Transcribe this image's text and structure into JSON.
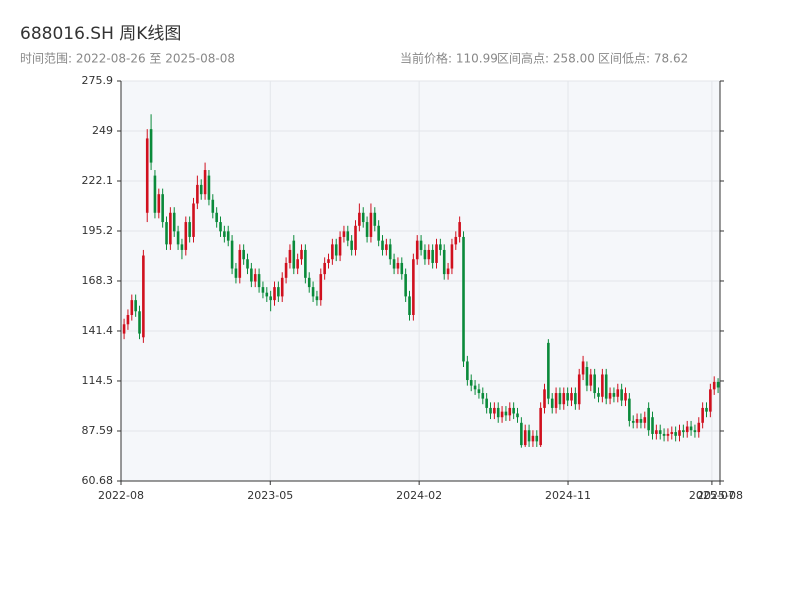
{
  "chart_data": {
    "type": "candlestick",
    "title": "688016.SH 周K线图",
    "subtitle": "时间范围: 2022-08-26 至 2025-08-08",
    "stats": [
      "当前价格: 110.99",
      "区间高点: 258.00",
      "区间低点: 78.62"
    ],
    "up_color": "#d0101e",
    "down_color": "#0a8a3a",
    "grid": true,
    "ylim": [
      60.68,
      275.9
    ],
    "yticks": [
      60.68,
      87.59,
      114.5,
      141.4,
      168.3,
      195.2,
      222.1,
      249.0,
      275.9
    ],
    "xlim": [
      -0.8,
      154.5
    ],
    "xticks": [
      {
        "value": -0.8,
        "label": "2022-08"
      },
      {
        "value": 37.9,
        "label": "2023-05"
      },
      {
        "value": 76.5,
        "label": "2024-02"
      },
      {
        "value": 115.1,
        "label": "2024-11"
      },
      {
        "value": 152.4,
        "label": "2025-07"
      },
      {
        "value": 154.5,
        "label": "2025-08"
      }
    ],
    "open": [
      140,
      145,
      150,
      158,
      152,
      138,
      205,
      250,
      225,
      205,
      215,
      200,
      188,
      205,
      195,
      188,
      185,
      200,
      192,
      210,
      220,
      215,
      225,
      212,
      205,
      200,
      195,
      195,
      190,
      175,
      170,
      185,
      180,
      175,
      168,
      172,
      165,
      162,
      160,
      158,
      165,
      160,
      170,
      178,
      190,
      175,
      180,
      185,
      170,
      165,
      160,
      158,
      172,
      178,
      180,
      188,
      182,
      192,
      195,
      190,
      185,
      198,
      205,
      200,
      192,
      205,
      198,
      190,
      185,
      188,
      180,
      175,
      178,
      172,
      160,
      150,
      180,
      190,
      185,
      180,
      185,
      178,
      188,
      185,
      172,
      175,
      188,
      192,
      192,
      125,
      115,
      112,
      110,
      108,
      105,
      100,
      97,
      100,
      95,
      98,
      96,
      100,
      97,
      92,
      80,
      88,
      82,
      85,
      80,
      100,
      135,
      105,
      100,
      108,
      102,
      108,
      104,
      108,
      102,
      118,
      122,
      112,
      118,
      108,
      106,
      118,
      105,
      108,
      106,
      110,
      104,
      105,
      93,
      92,
      94,
      92,
      100,
      95,
      86,
      88,
      86,
      85,
      86,
      87,
      85,
      88,
      87,
      90,
      88,
      87,
      92,
      100,
      98,
      110,
      114
    ],
    "high": [
      148,
      153,
      161,
      161,
      155,
      185,
      250,
      258,
      228,
      218,
      218,
      203,
      208,
      208,
      198,
      191,
      203,
      203,
      213,
      225,
      223,
      232,
      228,
      215,
      208,
      203,
      198,
      198,
      193,
      178,
      188,
      188,
      183,
      178,
      175,
      175,
      168,
      165,
      163,
      168,
      168,
      173,
      181,
      188,
      193,
      183,
      188,
      188,
      173,
      168,
      163,
      175,
      181,
      183,
      191,
      191,
      195,
      198,
      198,
      193,
      201,
      210,
      208,
      203,
      210,
      208,
      201,
      193,
      191,
      191,
      183,
      181,
      181,
      175,
      163,
      183,
      193,
      193,
      188,
      188,
      188,
      191,
      191,
      188,
      178,
      191,
      195,
      203,
      195,
      128,
      118,
      115,
      113,
      111,
      108,
      103,
      103,
      103,
      101,
      101,
      103,
      103,
      100,
      95,
      91,
      91,
      88,
      88,
      103,
      113,
      137,
      108,
      111,
      111,
      111,
      111,
      111,
      111,
      121,
      128,
      125,
      121,
      121,
      111,
      121,
      121,
      111,
      111,
      113,
      113,
      111,
      108,
      96,
      97,
      97,
      98,
      103,
      98,
      91,
      91,
      89,
      89,
      90,
      90,
      91,
      91,
      93,
      93,
      91,
      95,
      103,
      103,
      113,
      117,
      116
    ],
    "low": [
      137,
      142,
      147,
      149,
      137,
      135,
      200,
      228,
      202,
      202,
      197,
      185,
      185,
      192,
      185,
      180,
      182,
      189,
      189,
      207,
      212,
      212,
      209,
      202,
      197,
      192,
      189,
      187,
      172,
      167,
      167,
      177,
      172,
      165,
      165,
      162,
      159,
      157,
      152,
      155,
      157,
      157,
      167,
      175,
      172,
      172,
      177,
      167,
      162,
      157,
      155,
      155,
      169,
      175,
      177,
      179,
      179,
      189,
      187,
      182,
      182,
      195,
      197,
      189,
      189,
      195,
      187,
      182,
      182,
      177,
      172,
      172,
      169,
      157,
      147,
      147,
      177,
      182,
      177,
      177,
      175,
      175,
      182,
      169,
      169,
      172,
      185,
      189,
      122,
      112,
      109,
      107,
      105,
      102,
      97,
      94,
      94,
      92,
      92,
      93,
      93,
      94,
      92,
      78.62,
      79,
      79,
      79,
      79,
      79,
      97,
      102,
      97,
      97,
      99,
      99,
      101,
      101,
      99,
      99,
      115,
      109,
      109,
      105,
      103,
      103,
      102,
      102,
      103,
      103,
      101,
      101,
      90,
      89,
      89,
      89,
      89,
      85,
      83,
      83,
      83,
      82,
      82,
      83,
      82,
      82,
      84,
      84,
      85,
      84,
      84,
      89,
      95,
      95,
      107,
      108
    ],
    "close": [
      145,
      150,
      158,
      152,
      140,
      182,
      245,
      232,
      205,
      215,
      200,
      188,
      205,
      195,
      188,
      185,
      200,
      192,
      210,
      220,
      215,
      228,
      212,
      205,
      200,
      195,
      192,
      190,
      175,
      170,
      185,
      180,
      175,
      168,
      172,
      165,
      162,
      160,
      158,
      165,
      160,
      170,
      178,
      185,
      175,
      180,
      185,
      170,
      165,
      160,
      158,
      172,
      178,
      180,
      188,
      182,
      192,
      195,
      190,
      185,
      198,
      205,
      200,
      192,
      205,
      198,
      190,
      185,
      188,
      180,
      175,
      178,
      172,
      160,
      150,
      180,
      190,
      185,
      180,
      185,
      178,
      188,
      185,
      172,
      175,
      188,
      192,
      200,
      125,
      115,
      112,
      110,
      108,
      105,
      100,
      97,
      100,
      95,
      98,
      96,
      100,
      97,
      95,
      80,
      88,
      82,
      85,
      82,
      100,
      110,
      105,
      100,
      108,
      102,
      108,
      104,
      108,
      102,
      118,
      125,
      112,
      118,
      108,
      106,
      118,
      105,
      108,
      106,
      110,
      104,
      108,
      93,
      92,
      94,
      92,
      95,
      88,
      86,
      88,
      86,
      85,
      86,
      87,
      85,
      88,
      87,
      90,
      88,
      87,
      92,
      100,
      98,
      110,
      114,
      110.99
    ]
  }
}
